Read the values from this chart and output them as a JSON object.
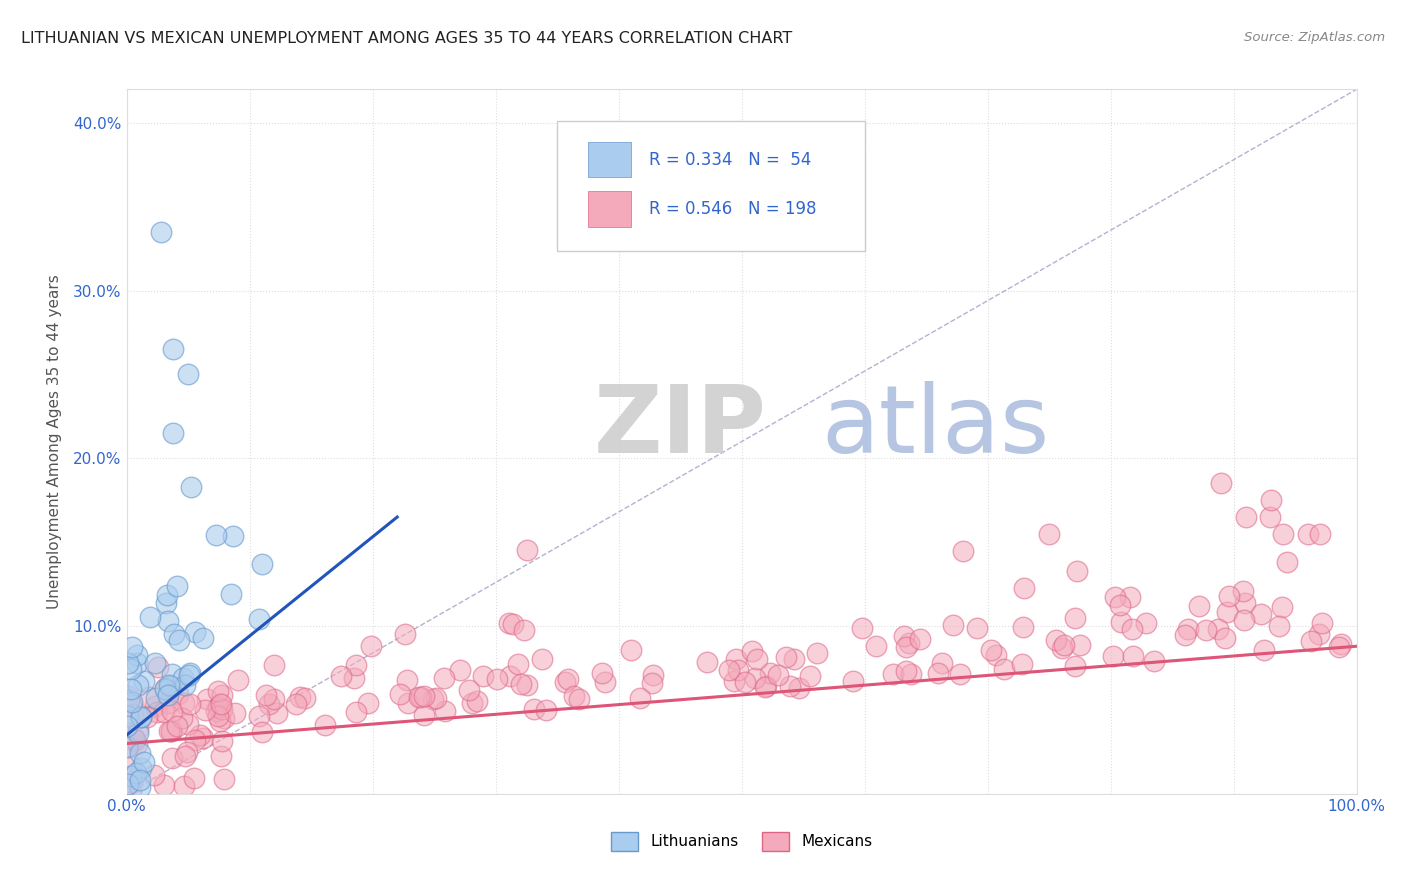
{
  "title": "LITHUANIAN VS MEXICAN UNEMPLOYMENT AMONG AGES 35 TO 44 YEARS CORRELATION CHART",
  "source": "Source: ZipAtlas.com",
  "ylabel": "Unemployment Among Ages 35 to 44 years",
  "xlim": [
    0.0,
    1.0
  ],
  "ylim": [
    0.0,
    0.42
  ],
  "xtick_vals": [
    0.0,
    0.1,
    0.2,
    0.3,
    0.4,
    0.5,
    0.6,
    0.7,
    0.8,
    0.9,
    1.0
  ],
  "ytick_vals": [
    0.0,
    0.1,
    0.2,
    0.3,
    0.4
  ],
  "ytick_labels": [
    "",
    "10.0%",
    "20.0%",
    "30.0%",
    "40.0%"
  ],
  "xtick_labels": [
    "0.0%",
    "",
    "",
    "",
    "",
    "",
    "",
    "",
    "",
    "",
    "100.0%"
  ],
  "legend_R1": "0.334",
  "legend_N1": "54",
  "legend_R2": "0.546",
  "legend_N2": "198",
  "lith_color": "#aaccee",
  "lith_edge_color": "#6699cc",
  "mex_color": "#f4aabb",
  "mex_edge_color": "#dd6688",
  "lith_trend_color": "#2255bb",
  "mex_trend_color": "#dd5577",
  "diag_color": "#aaaacc",
  "grid_color": "#dddddd",
  "tick_color": "#3366cc",
  "title_color": "#222222",
  "watermark_zip_color": "#cccccc",
  "watermark_atlas_color": "#aabbdd",
  "legend_text_color": "#3366cc",
  "bg_color": "#ffffff",
  "lith_trend_x0": 0.0,
  "lith_trend_y0": 0.035,
  "lith_trend_x1": 0.22,
  "lith_trend_y1": 0.165,
  "mex_trend_x0": 0.0,
  "mex_trend_y0": 0.03,
  "mex_trend_x1": 1.0,
  "mex_trend_y1": 0.088
}
